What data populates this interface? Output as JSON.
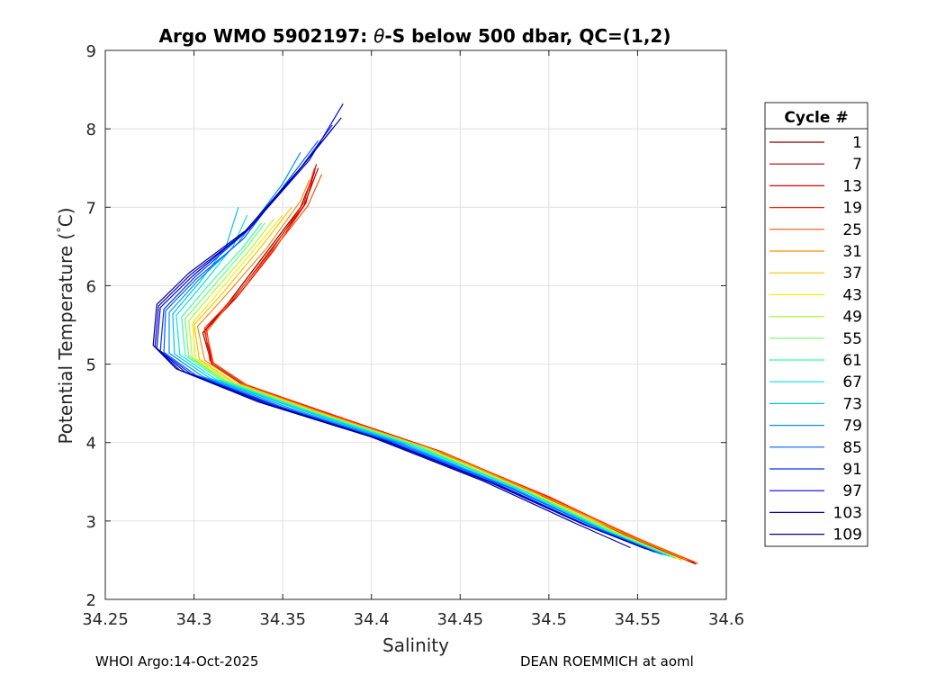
{
  "footer": {
    "left": "WHOI Argo:14-Oct-2025",
    "right": "DEAN ROEMMICH at aoml"
  },
  "chart_data": {
    "type": "line",
    "title_parts": [
      "Argo WMO 5902197: ",
      "θ",
      "-S below 500 dbar,  QC=(1,2)"
    ],
    "title": "Argo WMO 5902197: θ-S below 500 dbar,  QC=(1,2)",
    "xlabel": "Salinity",
    "ylabel_parts": [
      "Potential Temperature (",
      "°",
      "C)"
    ],
    "ylabel": "Potential Temperature (°C)",
    "xlim": [
      34.25,
      34.6
    ],
    "ylim": [
      2,
      9
    ],
    "xticks": [
      34.25,
      34.3,
      34.35,
      34.4,
      34.45,
      34.5,
      34.55,
      34.6
    ],
    "xtick_labels": [
      "34.25",
      "34.3",
      "34.35",
      "34.4",
      "34.45",
      "34.5",
      "34.55",
      "34.6"
    ],
    "yticks": [
      2,
      3,
      4,
      5,
      6,
      7,
      8,
      9
    ],
    "ytick_labels": [
      "2",
      "3",
      "4",
      "5",
      "6",
      "7",
      "8",
      "9"
    ],
    "grid": true,
    "legend": {
      "title": "Cycle #",
      "placement": "outside-right",
      "entries": [
        {
          "label": "1",
          "color": "#7f0000"
        },
        {
          "label": "7",
          "color": "#b40000"
        },
        {
          "label": "13",
          "color": "#e60000"
        },
        {
          "label": "19",
          "color": "#ff2000"
        },
        {
          "label": "25",
          "color": "#ff5500"
        },
        {
          "label": "31",
          "color": "#ff8a00"
        },
        {
          "label": "37",
          "color": "#ffbf00"
        },
        {
          "label": "43",
          "color": "#f2f000"
        },
        {
          "label": "49",
          "color": "#a8ff36"
        },
        {
          "label": "55",
          "color": "#6cff6e"
        },
        {
          "label": "61",
          "color": "#36ffa6"
        },
        {
          "label": "67",
          "color": "#00e8d8"
        },
        {
          "label": "73",
          "color": "#00bfff"
        },
        {
          "label": "79",
          "color": "#0090ff"
        },
        {
          "label": "85",
          "color": "#0060ff"
        },
        {
          "label": "91",
          "color": "#0030ff"
        },
        {
          "label": "97",
          "color": "#0000e6"
        },
        {
          "label": "103",
          "color": "#0000b8"
        },
        {
          "label": "109",
          "color": "#00008f"
        }
      ]
    },
    "series": [
      {
        "name": "1",
        "color": "#7f0000",
        "points": [
          [
            34.583,
            2.45
          ],
          [
            34.55,
            2.75
          ],
          [
            34.5,
            3.25
          ],
          [
            34.44,
            3.85
          ],
          [
            34.38,
            4.3
          ],
          [
            34.33,
            4.7
          ],
          [
            34.31,
            5.0
          ],
          [
            34.305,
            5.4
          ],
          [
            34.32,
            5.8
          ],
          [
            34.34,
            6.4
          ],
          [
            34.36,
            7.0
          ],
          [
            34.368,
            7.45
          ]
        ]
      },
      {
        "name": "7",
        "color": "#b40000",
        "points": [
          [
            34.582,
            2.47
          ],
          [
            34.55,
            2.77
          ],
          [
            34.5,
            3.28
          ],
          [
            34.44,
            3.87
          ],
          [
            34.38,
            4.32
          ],
          [
            34.33,
            4.72
          ],
          [
            34.31,
            5.02
          ],
          [
            34.306,
            5.42
          ],
          [
            34.322,
            5.82
          ],
          [
            34.342,
            6.42
          ],
          [
            34.362,
            7.02
          ],
          [
            34.37,
            7.5
          ]
        ]
      },
      {
        "name": "13",
        "color": "#e60000",
        "points": [
          [
            34.581,
            2.48
          ],
          [
            34.55,
            2.78
          ],
          [
            34.5,
            3.3
          ],
          [
            34.44,
            3.88
          ],
          [
            34.38,
            4.34
          ],
          [
            34.33,
            4.73
          ],
          [
            34.31,
            5.03
          ],
          [
            34.307,
            5.45
          ],
          [
            34.324,
            5.85
          ],
          [
            34.345,
            6.45
          ],
          [
            34.363,
            7.05
          ],
          [
            34.369,
            7.55
          ]
        ]
      },
      {
        "name": "19",
        "color": "#ff2000",
        "points": [
          [
            34.58,
            2.48
          ],
          [
            34.548,
            2.79
          ],
          [
            34.5,
            3.31
          ],
          [
            34.438,
            3.89
          ],
          [
            34.378,
            4.35
          ],
          [
            34.329,
            4.74
          ],
          [
            34.309,
            5.04
          ],
          [
            34.306,
            5.46
          ],
          [
            34.323,
            5.86
          ],
          [
            34.344,
            6.46
          ],
          [
            34.362,
            7.06
          ],
          [
            34.368,
            7.5
          ]
        ]
      },
      {
        "name": "25",
        "color": "#ff5500",
        "points": [
          [
            34.584,
            2.46
          ],
          [
            34.552,
            2.76
          ],
          [
            34.502,
            3.27
          ],
          [
            34.442,
            3.86
          ],
          [
            34.381,
            4.31
          ],
          [
            34.331,
            4.71
          ],
          [
            34.311,
            5.01
          ],
          [
            34.307,
            5.41
          ],
          [
            34.321,
            5.81
          ],
          [
            34.343,
            6.41
          ],
          [
            34.364,
            7.01
          ],
          [
            34.372,
            7.42
          ]
        ]
      },
      {
        "name": "31",
        "color": "#ff8a00",
        "points": [
          [
            34.578,
            2.5
          ],
          [
            34.546,
            2.8
          ],
          [
            34.497,
            3.32
          ],
          [
            34.436,
            3.9
          ],
          [
            34.375,
            4.36
          ],
          [
            34.326,
            4.75
          ],
          [
            34.306,
            5.05
          ],
          [
            34.302,
            5.48
          ],
          [
            34.318,
            5.88
          ],
          [
            34.341,
            6.48
          ],
          [
            34.36,
            7.08
          ],
          [
            34.365,
            7.35
          ]
        ]
      },
      {
        "name": "37",
        "color": "#ffbf00",
        "points": [
          [
            34.575,
            2.5
          ],
          [
            34.543,
            2.81
          ],
          [
            34.494,
            3.33
          ],
          [
            34.433,
            3.91
          ],
          [
            34.372,
            4.37
          ],
          [
            34.323,
            4.76
          ],
          [
            34.303,
            5.06
          ],
          [
            34.3,
            5.5
          ],
          [
            34.316,
            5.9
          ],
          [
            34.338,
            6.5
          ],
          [
            34.355,
            7.0
          ]
        ]
      },
      {
        "name": "43",
        "color": "#f2f000",
        "points": [
          [
            34.573,
            2.52
          ],
          [
            34.541,
            2.82
          ],
          [
            34.492,
            3.35
          ],
          [
            34.431,
            3.93
          ],
          [
            34.37,
            4.38
          ],
          [
            34.321,
            4.77
          ],
          [
            34.301,
            5.07
          ],
          [
            34.299,
            5.52
          ],
          [
            34.314,
            5.92
          ],
          [
            34.336,
            6.52
          ],
          [
            34.35,
            6.9
          ]
        ]
      },
      {
        "name": "49",
        "color": "#a8ff36",
        "points": [
          [
            34.572,
            2.52
          ],
          [
            34.54,
            2.83
          ],
          [
            34.49,
            3.36
          ],
          [
            34.429,
            3.94
          ],
          [
            34.368,
            4.39
          ],
          [
            34.319,
            4.78
          ],
          [
            34.299,
            5.08
          ],
          [
            34.297,
            5.55
          ],
          [
            34.312,
            5.95
          ],
          [
            34.333,
            6.5
          ],
          [
            34.345,
            6.85
          ]
        ]
      },
      {
        "name": "55",
        "color": "#6cff6e",
        "points": [
          [
            34.571,
            2.53
          ],
          [
            34.538,
            2.84
          ],
          [
            34.488,
            3.37
          ],
          [
            34.427,
            3.95
          ],
          [
            34.366,
            4.4
          ],
          [
            34.317,
            4.79
          ],
          [
            34.297,
            5.1
          ],
          [
            34.295,
            5.58
          ],
          [
            34.31,
            5.97
          ],
          [
            34.33,
            6.5
          ],
          [
            34.34,
            6.8
          ]
        ]
      },
      {
        "name": "61",
        "color": "#36ffa6",
        "points": [
          [
            34.57,
            2.54
          ],
          [
            34.536,
            2.85
          ],
          [
            34.486,
            3.38
          ],
          [
            34.425,
            3.96
          ],
          [
            34.364,
            4.41
          ],
          [
            34.315,
            4.8
          ],
          [
            34.295,
            5.11
          ],
          [
            34.293,
            5.6
          ],
          [
            34.308,
            6.0
          ],
          [
            34.328,
            6.5
          ],
          [
            34.338,
            6.8
          ]
        ]
      },
      {
        "name": "67",
        "color": "#00e8d8",
        "points": [
          [
            34.568,
            2.55
          ],
          [
            34.534,
            2.86
          ],
          [
            34.484,
            3.4
          ],
          [
            34.422,
            3.97
          ],
          [
            34.361,
            4.42
          ],
          [
            34.312,
            4.81
          ],
          [
            34.292,
            5.12
          ],
          [
            34.29,
            5.62
          ],
          [
            34.305,
            6.02
          ],
          [
            34.322,
            6.5
          ],
          [
            34.33,
            6.9
          ]
        ]
      },
      {
        "name": "73",
        "color": "#00bfff",
        "points": [
          [
            34.566,
            2.56
          ],
          [
            34.532,
            2.87
          ],
          [
            34.481,
            3.41
          ],
          [
            34.419,
            3.98
          ],
          [
            34.358,
            4.43
          ],
          [
            34.309,
            4.82
          ],
          [
            34.289,
            5.13
          ],
          [
            34.288,
            5.64
          ],
          [
            34.303,
            6.04
          ],
          [
            34.318,
            6.5
          ],
          [
            34.325,
            7.0
          ]
        ]
      },
      {
        "name": "79",
        "color": "#0090ff",
        "points": [
          [
            34.564,
            2.57
          ],
          [
            34.53,
            2.88
          ],
          [
            34.479,
            3.42
          ],
          [
            34.416,
            3.99
          ],
          [
            34.354,
            4.44
          ],
          [
            34.305,
            4.84
          ],
          [
            34.286,
            5.14
          ],
          [
            34.286,
            5.66
          ],
          [
            34.302,
            6.06
          ],
          [
            34.325,
            6.55
          ],
          [
            34.35,
            7.3
          ],
          [
            34.36,
            7.7
          ]
        ]
      },
      {
        "name": "85",
        "color": "#0060ff",
        "points": [
          [
            34.563,
            2.58
          ],
          [
            34.528,
            2.9
          ],
          [
            34.476,
            3.44
          ],
          [
            34.413,
            4.0
          ],
          [
            34.35,
            4.45
          ],
          [
            34.301,
            4.86
          ],
          [
            34.283,
            5.15
          ],
          [
            34.284,
            5.68
          ],
          [
            34.301,
            6.08
          ],
          [
            34.328,
            6.6
          ],
          [
            34.355,
            7.4
          ],
          [
            34.37,
            7.85
          ]
        ]
      },
      {
        "name": "91",
        "color": "#0030ff",
        "points": [
          [
            34.56,
            2.6
          ],
          [
            34.525,
            2.91
          ],
          [
            34.473,
            3.45
          ],
          [
            34.41,
            4.01
          ],
          [
            34.347,
            4.46
          ],
          [
            34.298,
            4.88
          ],
          [
            34.281,
            5.17
          ],
          [
            34.283,
            5.7
          ],
          [
            34.3,
            6.1
          ],
          [
            34.33,
            6.7
          ],
          [
            34.36,
            7.5
          ],
          [
            34.378,
            8.05
          ]
        ]
      },
      {
        "name": "97",
        "color": "#0000e6",
        "points": [
          [
            34.558,
            2.62
          ],
          [
            34.523,
            2.93
          ],
          [
            34.47,
            3.47
          ],
          [
            34.407,
            4.03
          ],
          [
            34.343,
            4.48
          ],
          [
            34.295,
            4.9
          ],
          [
            34.279,
            5.2
          ],
          [
            34.281,
            5.72
          ],
          [
            34.299,
            6.12
          ],
          [
            34.332,
            6.75
          ],
          [
            34.365,
            7.6
          ],
          [
            34.384,
            8.32
          ]
        ]
      },
      {
        "name": "103",
        "color": "#0000b8",
        "points": [
          [
            34.555,
            2.64
          ],
          [
            34.52,
            2.95
          ],
          [
            34.467,
            3.49
          ],
          [
            34.404,
            4.05
          ],
          [
            34.34,
            4.5
          ],
          [
            34.292,
            4.92
          ],
          [
            34.278,
            5.22
          ],
          [
            34.28,
            5.74
          ],
          [
            34.298,
            6.14
          ],
          [
            34.331,
            6.72
          ],
          [
            34.362,
            7.55
          ],
          [
            34.383,
            8.14
          ]
        ]
      },
      {
        "name": "109",
        "color": "#00008f",
        "points": [
          [
            34.546,
            2.66
          ],
          [
            34.515,
            2.97
          ],
          [
            34.463,
            3.51
          ],
          [
            34.4,
            4.07
          ],
          [
            34.336,
            4.52
          ],
          [
            34.29,
            4.94
          ],
          [
            34.277,
            5.24
          ],
          [
            34.279,
            5.76
          ],
          [
            34.297,
            6.16
          ],
          [
            34.329,
            6.7
          ],
          [
            34.36,
            7.5
          ],
          [
            34.378,
            8.0
          ]
        ]
      }
    ]
  }
}
